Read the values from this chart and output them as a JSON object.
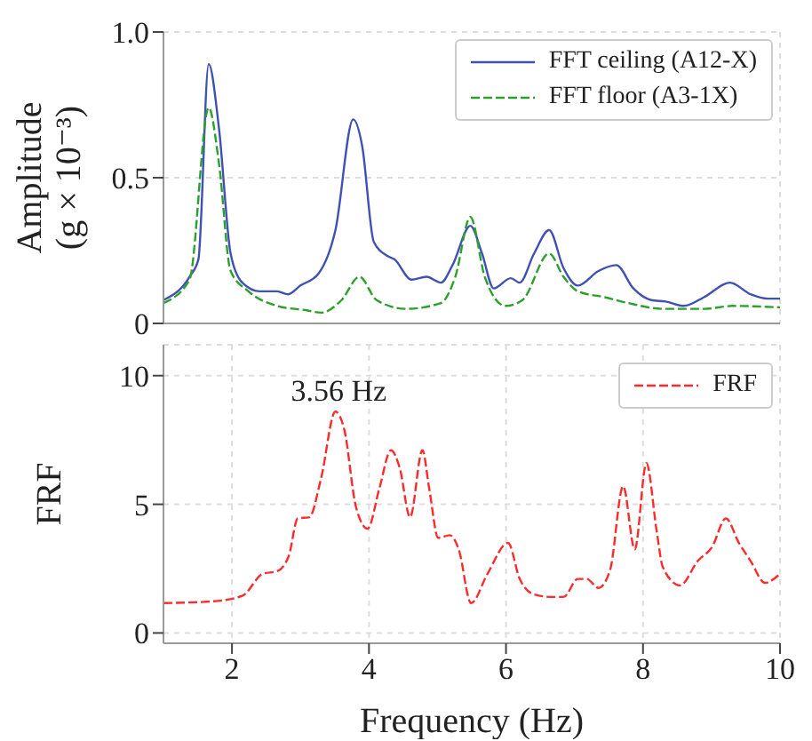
{
  "chart_data": [
    {
      "type": "line",
      "ylabel": "Amplitude (g × 10⁻³)",
      "xlim": [
        1,
        10
      ],
      "xticks": [
        2,
        4,
        6,
        8,
        10
      ],
      "ylim": [
        0,
        1.0
      ],
      "yticks": [
        0,
        0.5,
        {
          "value": 1.0,
          "label": "1.0"
        }
      ],
      "grid": true,
      "legend": "top right",
      "tick_labels": "y",
      "series": [
        {
          "name": "FFT ceiling (A12-X)",
          "color": "#3f51b5",
          "line_style": "solid",
          "x": [
            1.0,
            1.38,
            1.51,
            1.66,
            1.81,
            1.98,
            2.15,
            2.41,
            2.66,
            2.82,
            3.0,
            3.26,
            3.51,
            3.77,
            3.9,
            4.07,
            4.28,
            4.37,
            4.62,
            4.84,
            5.05,
            5.22,
            5.48,
            5.65,
            5.82,
            6.07,
            6.2,
            6.41,
            6.63,
            6.84,
            7.05,
            7.35,
            7.61,
            7.86,
            8.12,
            8.33,
            8.59,
            8.89,
            9.27,
            9.57,
            9.82,
            10.0
          ],
          "values": [
            0.08,
            0.16,
            0.22,
            0.89,
            0.67,
            0.24,
            0.14,
            0.11,
            0.11,
            0.1,
            0.13,
            0.17,
            0.32,
            0.7,
            0.61,
            0.28,
            0.23,
            0.22,
            0.15,
            0.16,
            0.14,
            0.2,
            0.335,
            0.24,
            0.12,
            0.155,
            0.14,
            0.24,
            0.32,
            0.19,
            0.13,
            0.18,
            0.2,
            0.12,
            0.08,
            0.075,
            0.06,
            0.09,
            0.14,
            0.1,
            0.085,
            0.085
          ]
        },
        {
          "name": "FFT floor (A3-1X)",
          "color": "#2ca02c",
          "line_style": "dashed",
          "x": [
            1.0,
            1.38,
            1.66,
            1.81,
            1.98,
            2.24,
            2.66,
            3.09,
            3.3,
            3.6,
            3.86,
            4.11,
            4.54,
            5.05,
            5.26,
            5.48,
            5.69,
            5.99,
            6.24,
            6.63,
            6.84,
            7.05,
            7.44,
            7.78,
            8.29,
            8.89,
            9.31,
            10.0
          ],
          "values": [
            0.07,
            0.15,
            0.74,
            0.55,
            0.18,
            0.11,
            0.06,
            0.045,
            0.037,
            0.08,
            0.16,
            0.08,
            0.05,
            0.07,
            0.16,
            0.365,
            0.16,
            0.06,
            0.08,
            0.24,
            0.16,
            0.11,
            0.09,
            0.07,
            0.05,
            0.05,
            0.06,
            0.055
          ]
        }
      ]
    },
    {
      "type": "line",
      "xlabel": "Frequency (Hz)",
      "ylabel": "FRF",
      "xlim": [
        1,
        10
      ],
      "xticks": [
        2,
        4,
        6,
        8,
        10
      ],
      "ylim": [
        -0.4,
        11.2
      ],
      "yticks": [
        0,
        5,
        10
      ],
      "grid": true,
      "legend": "top right",
      "annotations": [
        {
          "text": "3.56 Hz",
          "x": 3.56,
          "y": 8.6
        }
      ],
      "series": [
        {
          "name": "FRF",
          "color": "#ff2a2a",
          "line_style": "dashed",
          "x": [
            1.0,
            1.72,
            2.15,
            2.45,
            2.66,
            2.83,
            2.96,
            3.13,
            3.3,
            3.51,
            3.64,
            3.81,
            3.98,
            4.15,
            4.32,
            4.45,
            4.6,
            4.78,
            4.88,
            5.01,
            5.18,
            5.31,
            5.49,
            5.73,
            6.03,
            6.2,
            6.41,
            6.67,
            6.84,
            7.05,
            7.18,
            7.35,
            7.52,
            7.71,
            7.88,
            8.05,
            8.2,
            8.29,
            8.54,
            8.8,
            9.01,
            9.21,
            9.4,
            9.57,
            9.78,
            10.0
          ],
          "values": [
            1.16,
            1.23,
            1.44,
            2.3,
            2.4,
            3.0,
            4.45,
            4.5,
            6.0,
            8.6,
            7.9,
            4.9,
            4.05,
            5.6,
            7.1,
            6.4,
            4.5,
            7.1,
            5.6,
            3.7,
            3.8,
            3.25,
            1.16,
            2.3,
            3.5,
            2.1,
            1.5,
            1.4,
            1.4,
            2.1,
            2.1,
            1.75,
            2.45,
            5.7,
            3.25,
            6.6,
            3.95,
            2.55,
            1.85,
            2.8,
            3.35,
            4.45,
            3.5,
            2.8,
            1.95,
            2.3
          ]
        }
      ]
    }
  ]
}
